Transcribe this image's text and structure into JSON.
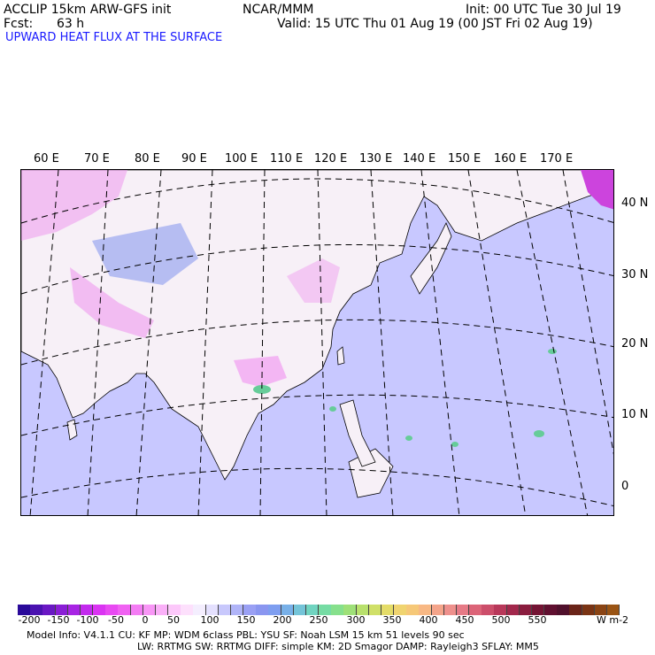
{
  "header": {
    "model": "ACCLIP 15km ARW-GFS init",
    "org": "NCAR/MMM",
    "init": "Init: 00 UTC Tue 30 Jul 19",
    "fcst_label": "Fcst:",
    "fcst_value": "63 h",
    "valid": "Valid: 15 UTC Thu 01 Aug 19 (00 JST Fri 02 Aug 19)",
    "field": "UPWARD HEAT FLUX AT THE SURFACE"
  },
  "map": {
    "lon_labels": [
      "60 E",
      "70 E",
      "80 E",
      "90 E",
      "100 E",
      "110 E",
      "120 E",
      "130 E",
      "140 E",
      "150 E",
      "160 E",
      "170 E"
    ],
    "lat_labels": [
      "40 N",
      "30 N",
      "20 N",
      "10 N",
      "0"
    ],
    "colors": {
      "land": "#f7f0f7",
      "ocean": "#c8c8ff",
      "neg": "#ee88ee",
      "pos_low": "#9999ee",
      "green": "#66cc99",
      "coast": "#000000",
      "grid": "#000000"
    }
  },
  "colorbar": {
    "labels": [
      "-200",
      "-150",
      "-100",
      "-50",
      "0",
      "50",
      "100",
      "150",
      "200",
      "250",
      "300",
      "350",
      "400",
      "450",
      "500",
      "550"
    ],
    "unit": "W m-2",
    "colors": [
      "#2a0a9a",
      "#4a12b0",
      "#6a18c4",
      "#8a1ed6",
      "#a824e4",
      "#c32aee",
      "#da34f2",
      "#e84af2",
      "#f062f2",
      "#f47cf4",
      "#f896f6",
      "#fab0f8",
      "#fcc8fa",
      "#fde0fc",
      "#f4eefe",
      "#e4e0fe",
      "#c8c8fc",
      "#b0b4f8",
      "#9aa0f4",
      "#8a96f0",
      "#7e9ef0",
      "#78b0e8",
      "#74c4d8",
      "#70d4c0",
      "#76dca4",
      "#86e08c",
      "#9ee078",
      "#b8e06c",
      "#d0e068",
      "#e4dc68",
      "#f0d470",
      "#f6c878",
      "#f8b884",
      "#f4a48a",
      "#ee908c",
      "#e67a86",
      "#dc6478",
      "#cc4e6a",
      "#b8385a",
      "#a2284c",
      "#8a1c3e",
      "#741434",
      "#601030",
      "#50102c",
      "#6a2418",
      "#7a3414",
      "#8a4414",
      "#9a5414"
    ]
  },
  "footer": {
    "line1": "Model Info: V4.1.1     CU: KF      MP: WDM 6class   PBL: YSU      SF: Noah LSM     15 km    51 levels    90 sec",
    "line2": "LW: RRTMG     SW: RRTMG   DIFF: simple KM: 2D Smagor DAMP: Rayleigh3   SFLAY: MM5"
  }
}
